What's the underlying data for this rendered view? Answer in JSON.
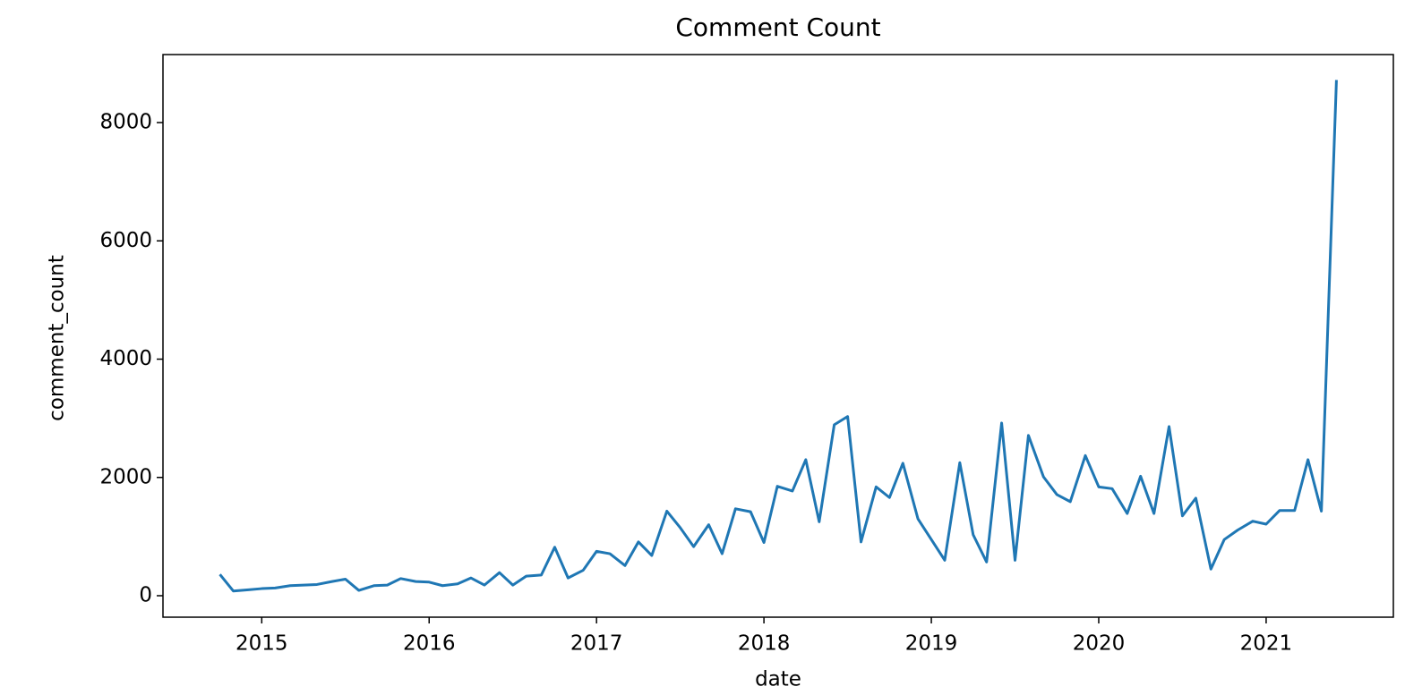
{
  "chart_data": {
    "type": "line",
    "title": "Comment Count",
    "x_label": "date",
    "y_label": "comment_count",
    "x": [
      2014.75,
      2014.83,
      2014.92,
      2015.0,
      2015.08,
      2015.17,
      2015.25,
      2015.33,
      2015.42,
      2015.5,
      2015.58,
      2015.67,
      2015.75,
      2015.83,
      2015.92,
      2016.0,
      2016.08,
      2016.17,
      2016.25,
      2016.33,
      2016.42,
      2016.5,
      2016.58,
      2016.67,
      2016.75,
      2016.83,
      2016.92,
      2017.0,
      2017.08,
      2017.17,
      2017.25,
      2017.33,
      2017.42,
      2017.5,
      2017.58,
      2017.67,
      2017.75,
      2017.83,
      2017.92,
      2018.0,
      2018.08,
      2018.17,
      2018.25,
      2018.33,
      2018.42,
      2018.5,
      2018.58,
      2018.67,
      2018.75,
      2018.83,
      2018.92,
      2019.0,
      2019.08,
      2019.17,
      2019.25,
      2019.33,
      2019.42,
      2019.5,
      2019.58,
      2019.67,
      2019.75,
      2019.83,
      2019.92,
      2020.0,
      2020.08,
      2020.17,
      2020.25,
      2020.33,
      2020.42,
      2020.5,
      2020.58,
      2020.67,
      2020.75,
      2020.83,
      2020.92,
      2021.0,
      2021.08,
      2021.17,
      2021.25,
      2021.33,
      2021.42
    ],
    "values": [
      360,
      80,
      100,
      120,
      130,
      170,
      180,
      190,
      240,
      280,
      90,
      170,
      180,
      290,
      240,
      230,
      170,
      200,
      300,
      180,
      390,
      180,
      330,
      350,
      820,
      300,
      430,
      750,
      710,
      510,
      910,
      680,
      1430,
      1150,
      830,
      1200,
      710,
      1470,
      1420,
      900,
      1850,
      1770,
      2300,
      1250,
      2890,
      3030,
      910,
      1840,
      1660,
      2240,
      1300,
      950,
      600,
      2250,
      1030,
      570,
      2920,
      600,
      2710,
      2010,
      1710,
      1590,
      2370,
      1840,
      1810,
      1390,
      2020,
      1390,
      2860,
      1350,
      1650,
      450,
      950,
      1110,
      1260,
      1210,
      1440,
      1440,
      2300,
      1430,
      8720
    ],
    "color": "#1f77b4",
    "xlim": [
      2014.41,
      2021.76
    ],
    "xticks": [
      2015,
      2016,
      2017,
      2018,
      2019,
      2020,
      2021
    ],
    "ylim": [
      -363,
      9150
    ],
    "yticks": [
      0,
      2000,
      4000,
      6000,
      8000
    ],
    "grid": false
  }
}
